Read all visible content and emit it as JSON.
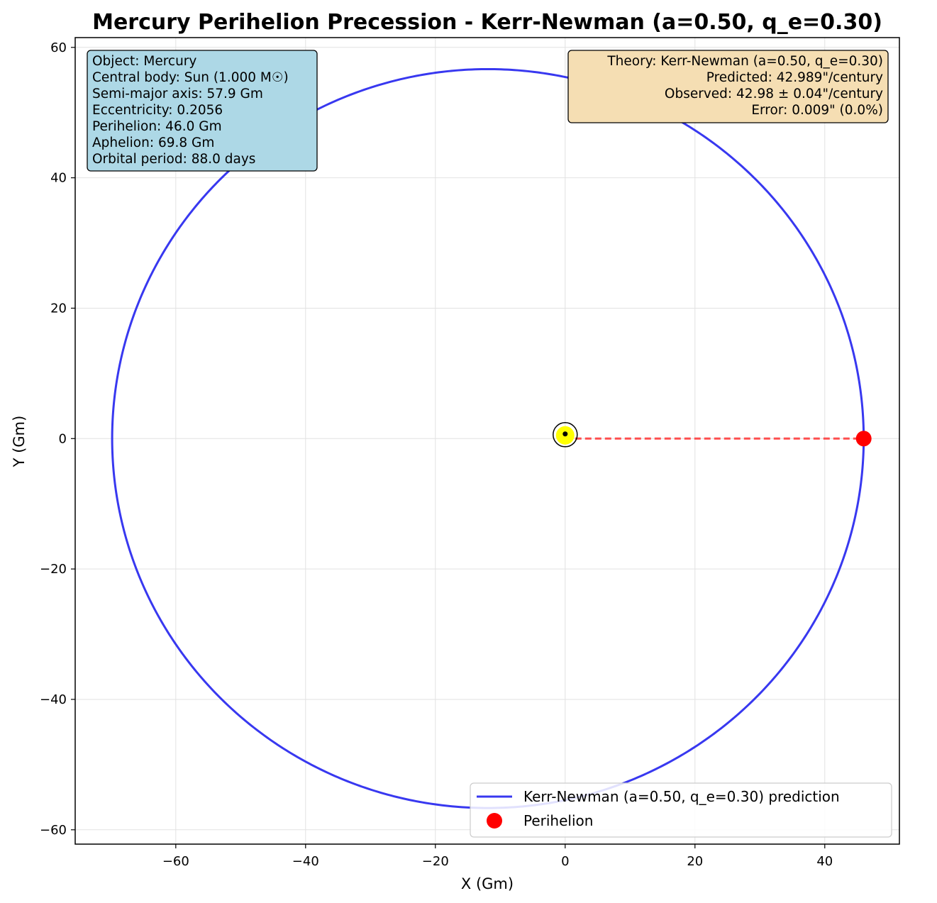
{
  "chart_data": {
    "type": "line",
    "title": "Mercury Perihelion Precession - Kerr-Newman (a=0.50, q_e=0.30)",
    "xlabel": "X (Gm)",
    "ylabel": "Y (Gm)",
    "xlim": [
      -75.5,
      51.5
    ],
    "ylim": [
      -62.2,
      61.5
    ],
    "xticks": [
      -60,
      -40,
      -20,
      0,
      20,
      40
    ],
    "yticks": [
      -60,
      -40,
      -20,
      0,
      20,
      40,
      60
    ],
    "xtick_labels": [
      "−60",
      "−40",
      "−20",
      "0",
      "20",
      "40"
    ],
    "ytick_labels": [
      "−60",
      "−40",
      "−20",
      "0",
      "20",
      "40",
      "60"
    ],
    "grid": true,
    "legend_placement": "lower-right",
    "orbit": {
      "semi_major_axis": 57.9,
      "eccentricity": 0.2056,
      "focus": [
        0,
        0
      ],
      "color": "#2222ee"
    },
    "series": [
      {
        "name": "Kerr-Newman (a=0.50, q_e=0.30) prediction",
        "kind": "line",
        "color": "#2222ee"
      },
      {
        "name": "Perihelion",
        "kind": "marker",
        "color": "#ff0000",
        "x": 46.0,
        "y": 0
      }
    ],
    "perihelion_line": {
      "x": [
        0,
        46.0
      ],
      "y": [
        0,
        0
      ],
      "color": "#ff3333",
      "style": "dashed"
    },
    "central_body": {
      "x": 0,
      "y": 0.6,
      "fill": "#ffff00",
      "edge": "#000000"
    },
    "info_box": {
      "background": "#add8e6",
      "lines": [
        "Object: Mercury",
        "Central body: Sun (1.000 M☉)",
        "Semi-major axis: 57.9 Gm",
        "Eccentricity: 0.2056",
        "Perihelion: 46.0 Gm",
        "Aphelion: 69.8 Gm",
        "Orbital period: 88.0 days"
      ]
    },
    "theory_box": {
      "background": "#f5deb3",
      "lines": [
        "Theory: Kerr-Newman (a=0.50, q_e=0.30)",
        "Predicted: 42.989\"/century",
        "Observed: 42.98 ± 0.04\"/century",
        "Error: 0.009\" (0.0%)"
      ]
    }
  }
}
